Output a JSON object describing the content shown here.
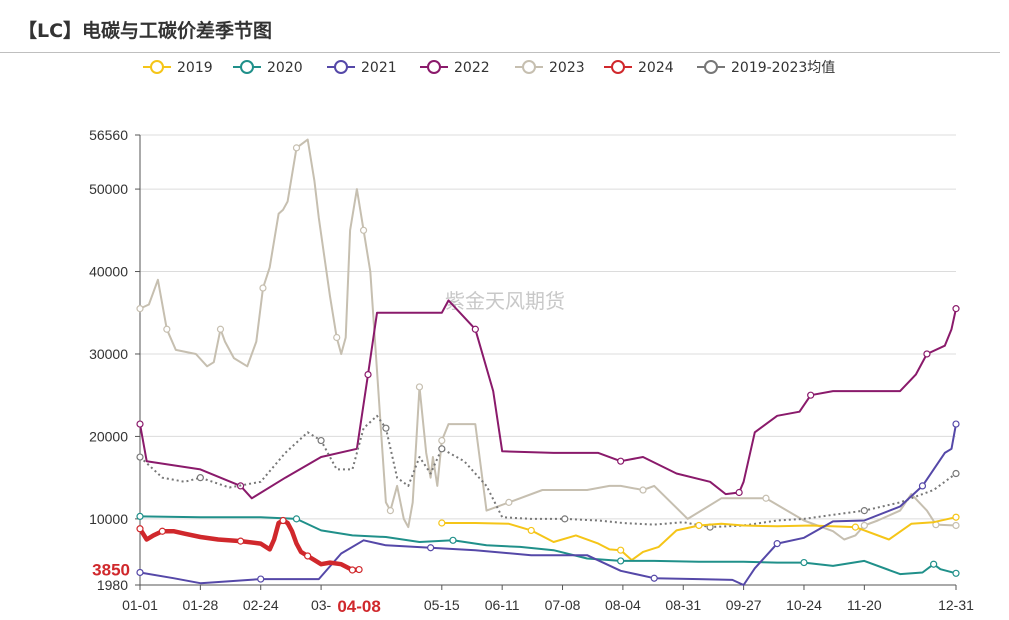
{
  "title": "【LC】电碳与工碳价差季节图",
  "watermark": "紫金天风期货",
  "chart_data": {
    "type": "line",
    "title": "【LC】电碳与工碳价差季节图",
    "xlabel": "",
    "ylabel": "",
    "ylim": [
      1980,
      56560
    ],
    "y_ticks": [
      "1980",
      "10000",
      "20000",
      "30000",
      "40000",
      "50000",
      "56560"
    ],
    "y_tick_values": [
      1980,
      10000,
      20000,
      30000,
      40000,
      50000,
      56560
    ],
    "x_ticks": [
      "01-01",
      "01-28",
      "02-24",
      "03-",
      "05-15",
      "06-11",
      "07-08",
      "08-04",
      "08-31",
      "09-27",
      "10-24",
      "11-20",
      "12-31"
    ],
    "x_tick_days": [
      0,
      27,
      54,
      81,
      135,
      162,
      189,
      216,
      243,
      270,
      297,
      324,
      365
    ],
    "highlight": {
      "y_label": "3850",
      "y_value": 3850,
      "x_label": "04-08",
      "x_day": 98
    },
    "legend_position": "top",
    "grid": true,
    "series": [
      {
        "name": "2019",
        "color": "#f5c518",
        "marker": "hollow-circle",
        "x": [
          135,
          150,
          165,
          175,
          185,
          195,
          205,
          210,
          215,
          220,
          225,
          232,
          240,
          250,
          260,
          270,
          285,
          300,
          320,
          335,
          345,
          355,
          365
        ],
        "y": [
          9500,
          9500,
          9400,
          8600,
          7200,
          8000,
          7000,
          6300,
          6200,
          5000,
          6000,
          6600,
          8600,
          9200,
          9400,
          9200,
          9100,
          9200,
          9000,
          7500,
          9400,
          9600,
          10200
        ]
      },
      {
        "name": "2020",
        "color": "#20908a",
        "marker": "hollow-circle",
        "x": [
          0,
          27,
          54,
          70,
          81,
          95,
          110,
          125,
          140,
          155,
          170,
          185,
          200,
          215,
          230,
          250,
          270,
          285,
          297,
          310,
          324,
          340,
          350,
          355,
          358,
          365
        ],
        "y": [
          10300,
          10200,
          10200,
          10000,
          8600,
          8000,
          7800,
          7200,
          7400,
          6800,
          6600,
          6200,
          5200,
          4900,
          4900,
          4800,
          4800,
          4700,
          4700,
          4300,
          4900,
          3300,
          3500,
          4500,
          3900,
          3400
        ]
      },
      {
        "name": "2021",
        "color": "#5548a8",
        "marker": "hollow-circle",
        "x": [
          0,
          15,
          27,
          54,
          80,
          90,
          100,
          110,
          130,
          150,
          175,
          200,
          215,
          230,
          250,
          265,
          270,
          275,
          285,
          297,
          310,
          324,
          340,
          350,
          360,
          363,
          365
        ],
        "y": [
          3500,
          2800,
          2200,
          2700,
          2700,
          5800,
          7400,
          6800,
          6500,
          6200,
          5600,
          5600,
          3700,
          2800,
          2700,
          2600,
          1980,
          4000,
          7000,
          7700,
          9700,
          9800,
          11500,
          14000,
          18000,
          18500,
          21500
        ]
      },
      {
        "name": "2022",
        "color": "#8a1a6b",
        "marker": "hollow-circle",
        "x": [
          0,
          3,
          27,
          45,
          50,
          65,
          81,
          97,
          102,
          106,
          120,
          135,
          138,
          150,
          158,
          162,
          185,
          205,
          215,
          225,
          240,
          255,
          262,
          268,
          270,
          275,
          285,
          295,
          300,
          310,
          320,
          340,
          347,
          352,
          360,
          363,
          365
        ],
        "y": [
          21500,
          17000,
          16000,
          14000,
          12500,
          15000,
          17500,
          18500,
          27500,
          35000,
          35000,
          35000,
          36500,
          33000,
          25500,
          18200,
          18000,
          18000,
          17000,
          17500,
          15500,
          14500,
          13000,
          13200,
          14500,
          20500,
          22500,
          23000,
          25000,
          25500,
          25500,
          25500,
          27500,
          30000,
          31000,
          33000,
          35500
        ]
      },
      {
        "name": "2023",
        "color": "#c6bfb0",
        "marker": "hollow-circle",
        "x": [
          0,
          4,
          8,
          12,
          16,
          25,
          30,
          33,
          36,
          38,
          42,
          48,
          52,
          55,
          58,
          62,
          64,
          66,
          70,
          75,
          78,
          80,
          85,
          88,
          90,
          92,
          94,
          97,
          100,
          103,
          106,
          108,
          110,
          112,
          115,
          118,
          120,
          122,
          125,
          128,
          130,
          131,
          133,
          135,
          138,
          145,
          150,
          155,
          165,
          180,
          200,
          210,
          215,
          225,
          230,
          245,
          260,
          270,
          280,
          297,
          310,
          315,
          320,
          324,
          330,
          340,
          345,
          352,
          356,
          365
        ],
        "y": [
          35500,
          36000,
          39000,
          33000,
          30500,
          30000,
          28500,
          29000,
          33000,
          31500,
          29500,
          28500,
          31500,
          38000,
          40500,
          47000,
          47500,
          48500,
          55000,
          56000,
          51000,
          46500,
          37000,
          32000,
          30000,
          32000,
          45000,
          50000,
          45000,
          40000,
          28000,
          20000,
          12000,
          11000,
          14000,
          10000,
          9000,
          12000,
          26000,
          18000,
          15000,
          17500,
          14000,
          19500,
          21500,
          21500,
          21500,
          11000,
          12000,
          13500,
          13500,
          14000,
          14000,
          13500,
          14000,
          10000,
          12500,
          12500,
          12500,
          9800,
          8500,
          7500,
          8000,
          9200,
          9800,
          11000,
          13000,
          11000,
          9300,
          9200
        ]
      },
      {
        "name": "2024",
        "color": "#d0282c",
        "marker": "hollow-circle",
        "x": [
          0,
          3,
          6,
          10,
          15,
          20,
          27,
          35,
          45,
          54,
          58,
          60,
          62,
          64,
          66,
          68,
          70,
          72,
          75,
          78,
          81,
          85,
          90,
          95,
          98
        ],
        "y": [
          8800,
          7500,
          8000,
          8500,
          8500,
          8200,
          7800,
          7500,
          7300,
          7000,
          6300,
          7500,
          9500,
          9800,
          9500,
          8500,
          7000,
          6000,
          5500,
          5000,
          4500,
          4700,
          4500,
          3800,
          3850
        ]
      },
      {
        "name": "2019-2023均值",
        "color": "#777777",
        "marker": "hollow-circle",
        "dashed": true,
        "x": [
          0,
          10,
          20,
          27,
          40,
          54,
          65,
          75,
          81,
          88,
          95,
          100,
          106,
          110,
          115,
          120,
          125,
          130,
          135,
          145,
          155,
          162,
          175,
          190,
          205,
          216,
          230,
          243,
          255,
          270,
          285,
          297,
          310,
          324,
          340,
          355,
          365
        ],
        "y": [
          17500,
          15000,
          14500,
          15000,
          13800,
          14500,
          18000,
          20500,
          19500,
          16000,
          16000,
          21000,
          22500,
          21000,
          15000,
          14000,
          17500,
          15500,
          18500,
          17000,
          14000,
          10200,
          10000,
          10000,
          9800,
          9500,
          9300,
          9600,
          9000,
          9200,
          9800,
          10000,
          10500,
          11000,
          12000,
          13500,
          15500
        ]
      }
    ]
  }
}
